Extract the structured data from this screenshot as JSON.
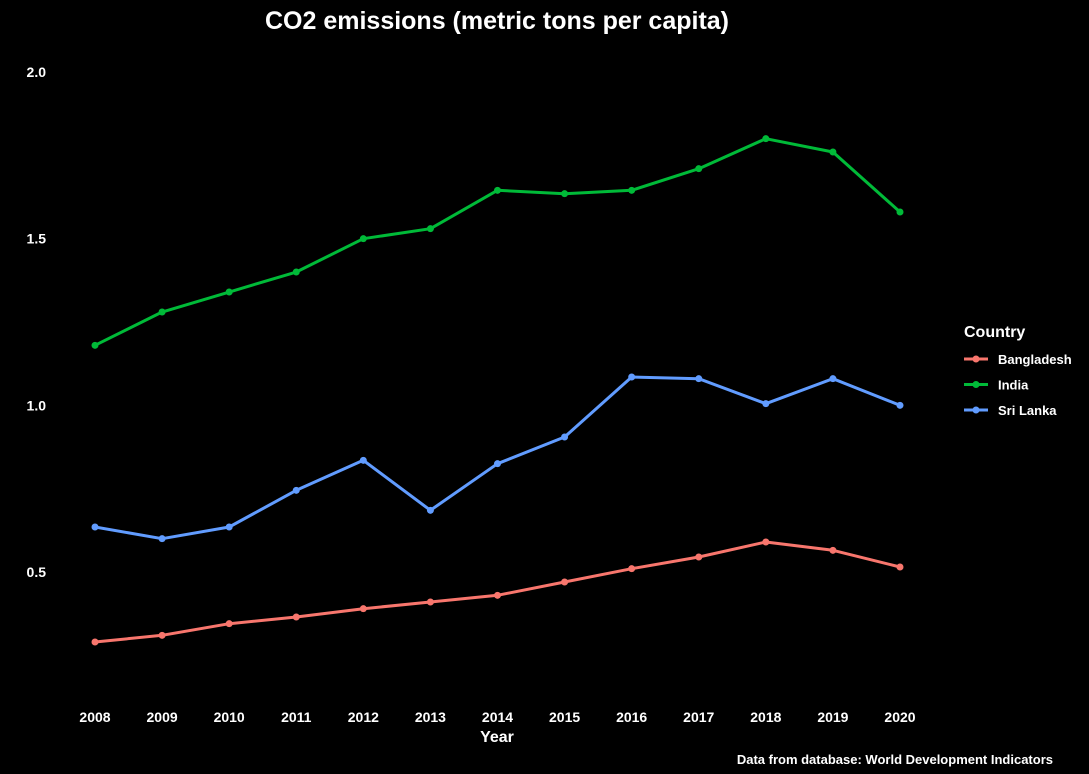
{
  "chart_data": {
    "type": "line",
    "title": "CO2 emissions (metric tons per capita)",
    "xlabel": "Year",
    "ylabel": "",
    "caption": "Data from database: World Development Indicators",
    "x": [
      "2008",
      "2009",
      "2010",
      "2011",
      "2012",
      "2013",
      "2014",
      "2015",
      "2016",
      "2017",
      "2018",
      "2019",
      "2020"
    ],
    "ylim": [
      0.2,
      2.0
    ],
    "yticks": [
      "0.5",
      "1.0",
      "1.5",
      "2.0"
    ],
    "grid": false,
    "legend": {
      "title": "Country",
      "position": "right"
    },
    "series": [
      {
        "name": "Bangladesh",
        "color": "#F8766D",
        "values": [
          0.29,
          0.31,
          0.345,
          0.365,
          0.39,
          0.41,
          0.43,
          0.47,
          0.51,
          0.545,
          0.59,
          0.565,
          0.515
        ]
      },
      {
        "name": "India",
        "color": "#00BA38",
        "values": [
          1.18,
          1.28,
          1.34,
          1.4,
          1.5,
          1.53,
          1.645,
          1.635,
          1.645,
          1.71,
          1.8,
          1.76,
          1.58
        ]
      },
      {
        "name": "Sri Lanka",
        "color": "#619CFF",
        "values": [
          0.635,
          0.6,
          0.635,
          0.745,
          0.835,
          0.685,
          0.825,
          0.905,
          1.085,
          1.08,
          1.005,
          1.08,
          1.0
        ]
      }
    ]
  }
}
